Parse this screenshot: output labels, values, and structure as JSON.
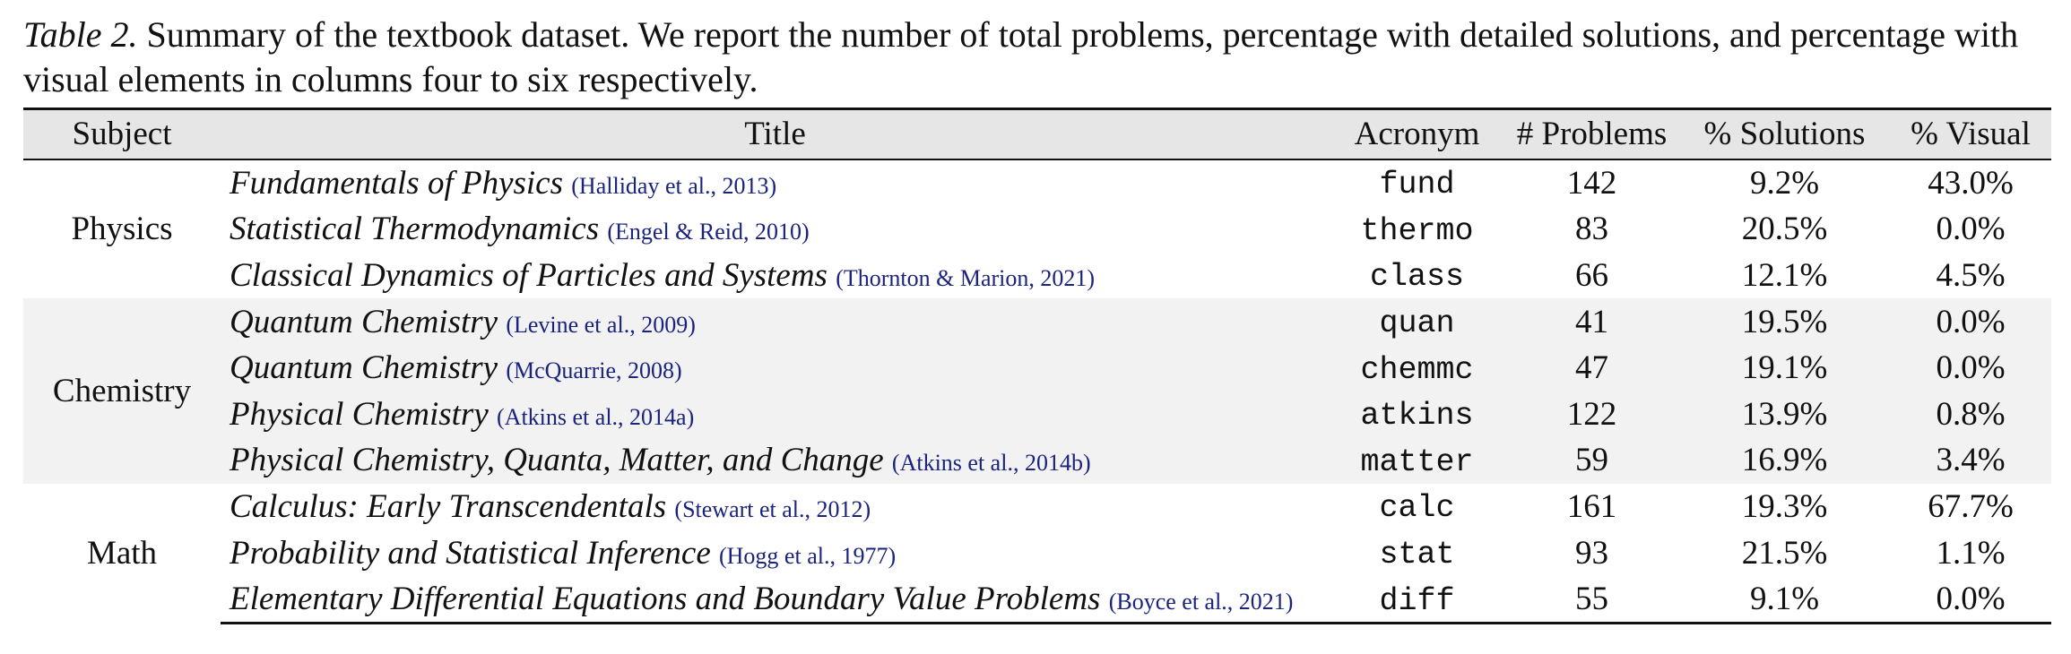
{
  "caption": {
    "label": "Table 2.",
    "text": "Summary of the textbook dataset. We report the number of total problems, percentage with detailed solutions, and percentage with visual elements in columns four to six respectively."
  },
  "table": {
    "headers": [
      "Subject",
      "Title",
      "Acronym",
      "# Problems",
      "% Solutions",
      "% Visual"
    ],
    "groups": [
      {
        "subject": "Physics",
        "rows": [
          {
            "title": "Fundamentals of Physics",
            "citation": "(Halliday et al., 2013)",
            "acronym": "fund",
            "problems": "142",
            "solutions": "9.2%",
            "visual": "43.0%"
          },
          {
            "title": "Statistical Thermodynamics",
            "citation": "(Engel & Reid, 2010)",
            "acronym": "thermo",
            "problems": "83",
            "solutions": "20.5%",
            "visual": "0.0%"
          },
          {
            "title": "Classical Dynamics of Particles and Systems",
            "citation": "(Thornton & Marion, 2021)",
            "acronym": "class",
            "problems": "66",
            "solutions": "12.1%",
            "visual": "4.5%"
          }
        ]
      },
      {
        "subject": "Chemistry",
        "rows": [
          {
            "title": "Quantum Chemistry",
            "citation": "(Levine et al., 2009)",
            "acronym": "quan",
            "problems": "41",
            "solutions": "19.5%",
            "visual": "0.0%"
          },
          {
            "title": "Quantum Chemistry",
            "citation": "(McQuarrie, 2008)",
            "acronym": "chemmc",
            "problems": "47",
            "solutions": "19.1%",
            "visual": "0.0%"
          },
          {
            "title": "Physical Chemistry",
            "citation": "(Atkins et al., 2014a)",
            "acronym": "atkins",
            "problems": "122",
            "solutions": "13.9%",
            "visual": "0.8%"
          },
          {
            "title": "Physical Chemistry, Quanta, Matter, and Change",
            "citation": "(Atkins et al., 2014b)",
            "acronym": "matter",
            "problems": "59",
            "solutions": "16.9%",
            "visual": "3.4%"
          }
        ]
      },
      {
        "subject": "Math",
        "rows": [
          {
            "title": "Calculus: Early Transcendentals",
            "citation": "(Stewart et al., 2012)",
            "acronym": "calc",
            "problems": "161",
            "solutions": "19.3%",
            "visual": "67.7%"
          },
          {
            "title": "Probability and Statistical Inference",
            "citation": "(Hogg et al., 1977)",
            "acronym": "stat",
            "problems": "93",
            "solutions": "21.5%",
            "visual": "1.1%"
          },
          {
            "title": "Elementary Differential Equations and Boundary Value Problems",
            "citation": "(Boyce et al., 2021)",
            "acronym": "diff",
            "problems": "55",
            "solutions": "9.1%",
            "visual": "0.0%"
          }
        ]
      }
    ]
  },
  "colors": {
    "header_bg": "#e6e6e6",
    "shaded_group_bg": "#f2f2f2",
    "citation": "#1a237e"
  }
}
